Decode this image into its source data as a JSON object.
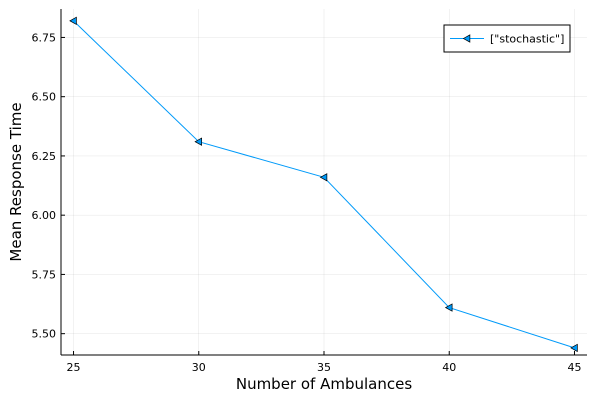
{
  "chart_data": {
    "type": "line",
    "title": "",
    "xlabel": "Number of Ambulances",
    "ylabel": "Mean Response Time",
    "x": [
      25,
      30,
      35,
      40,
      45
    ],
    "series": [
      {
        "name": "[\"stochastic\"]",
        "values": [
          6.82,
          6.31,
          6.16,
          5.61,
          5.44
        ],
        "color": "#009AF9"
      }
    ],
    "xticks": [
      25,
      30,
      35,
      40,
      45
    ],
    "xtick_labels": [
      "25",
      "30",
      "35",
      "40",
      "45"
    ],
    "yticks": [
      5.5,
      5.75,
      6.0,
      6.25,
      6.5,
      6.75
    ],
    "ytick_labels": [
      "5.50",
      "5.75",
      "6.00",
      "6.25",
      "6.50",
      "6.75"
    ],
    "xlim": [
      24.5,
      45.5
    ],
    "ylim": [
      5.41,
      6.87
    ],
    "grid": true,
    "legend_position": "top-right",
    "marker": "left-triangle"
  }
}
